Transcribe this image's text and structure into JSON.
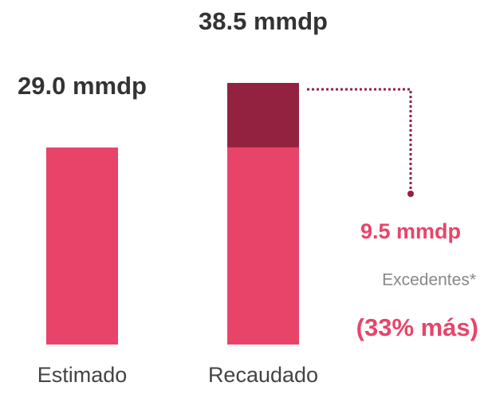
{
  "chart_data": {
    "type": "stacked_bar",
    "categories": [
      "Estimado",
      "Recaudado"
    ],
    "series": [
      {
        "color": "#e8446a",
        "values": [
          29.0,
          29.0
        ]
      },
      {
        "color": "#92223f",
        "values": [
          null,
          9.5
        ],
        "value_labels": [
          null,
          "9.5 mmdp"
        ]
      }
    ],
    "totals": [
      29.0,
      38.5
    ],
    "total_labels": [
      "29.0 mmdp",
      "38.5 mmdp"
    ],
    "annotations": [
      "Excedentes*",
      "(33% más)"
    ],
    "ylim": [
      0,
      50
    ]
  }
}
